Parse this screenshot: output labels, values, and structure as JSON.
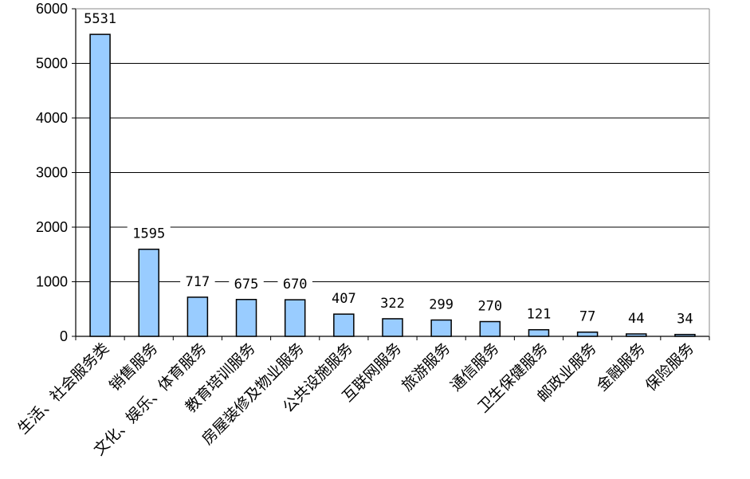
{
  "chart_data": {
    "type": "bar",
    "categories": [
      "生活、社会服务类",
      "销售服务",
      "文化、娱乐、体育服务",
      "教育培训服务",
      "房屋装修及物业服务",
      "公共设施服务",
      "互联网服务",
      "旅游服务",
      "通信服务",
      "卫生保健服务",
      "邮政业服务",
      "金融服务",
      "保险服务"
    ],
    "values": [
      5531,
      1595,
      717,
      675,
      670,
      407,
      322,
      299,
      270,
      121,
      77,
      44,
      34
    ],
    "title": "",
    "xlabel": "",
    "ylabel": "",
    "ylim": [
      0,
      6000
    ],
    "yticks": [
      0,
      1000,
      2000,
      3000,
      4000,
      5000,
      6000
    ],
    "grid": true,
    "legend": "none",
    "bar_color": "#99CCFF",
    "bar_stroke": "#000000"
  }
}
